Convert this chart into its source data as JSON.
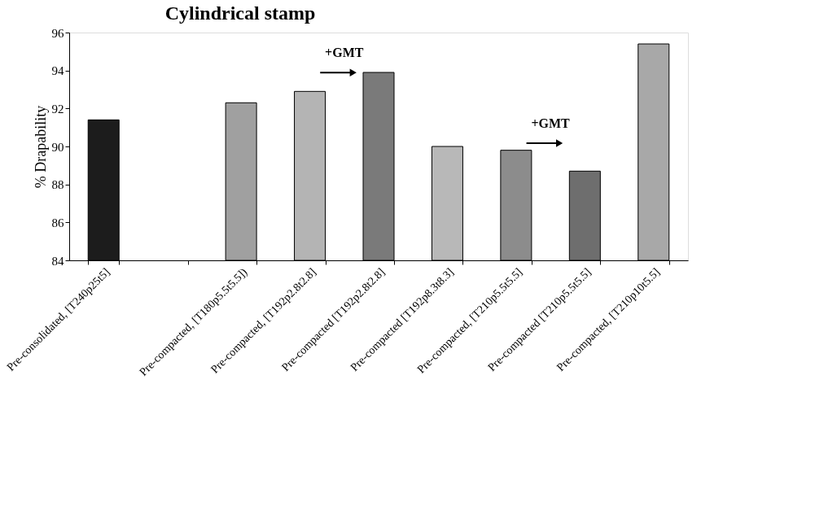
{
  "chart_data": {
    "type": "bar",
    "title": "Cylindrical stamp",
    "ylabel": "% Drapability",
    "categories": [
      "Pre-consolidated, [T240p25t5]",
      null,
      "Pre-compacted, [T180p5.5t5.5])",
      "Pre-compacted, [T192p2.8t2.8]",
      "Pre-compacted [T192p2.8t2.8]",
      "Pre-compacted [T192p8.3t8.3]",
      "Pre-compacted, [T210p5.5t5.5]",
      "Pre-compacted [T210p5.5t5.5]",
      "Pre-compacted, [T210p10t5.5]"
    ],
    "values": [
      91.4,
      null,
      92.3,
      92.9,
      93.9,
      90.0,
      89.8,
      88.7,
      95.4
    ],
    "colors": [
      "#1c1c1c",
      null,
      "#a0a0a0",
      "#b4b4b4",
      "#7a7a7a",
      "#b8b8b8",
      "#8c8c8c",
      "#6e6e6e",
      "#a8a8a8"
    ],
    "ylim": [
      84,
      96
    ],
    "yticks": [
      84,
      86,
      88,
      90,
      92,
      94,
      96
    ],
    "grid": false,
    "annotations": [
      "+GMT",
      "+GMT"
    ]
  }
}
